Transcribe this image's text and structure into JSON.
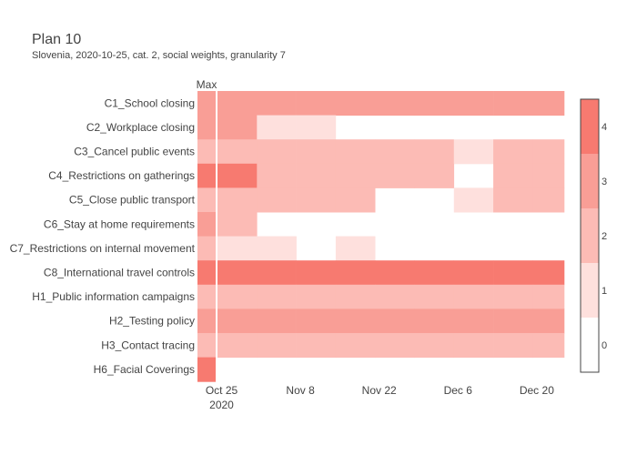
{
  "chart_data": {
    "type": "heatmap",
    "title": "Plan 10",
    "subtitle": "Slovenia, 2020-10-25, cat. 2, social weights, granularity 7",
    "max_column_label": "Max",
    "rows": [
      "C1_School closing",
      "C2_Workplace closing",
      "C3_Cancel public events",
      "C4_Restrictions on gatherings",
      "C5_Close public transport",
      "C6_Stay at home requirements",
      "C7_Restrictions on internal movement",
      "C8_International travel controls",
      "H1_Public information campaigns",
      "H2_Testing policy",
      "H3_Contact tracing",
      "H6_Facial Coverings"
    ],
    "max_values": [
      3,
      3,
      2,
      4,
      2,
      3,
      2,
      4,
      2,
      3,
      2,
      4
    ],
    "week_values": [
      [
        3,
        3,
        3,
        3,
        3,
        3,
        3,
        3,
        3,
        3
      ],
      [
        3,
        1,
        1,
        null,
        null,
        null,
        null,
        null,
        null,
        null
      ],
      [
        2,
        2,
        2,
        2,
        2,
        2,
        1,
        2,
        2,
        2
      ],
      [
        4,
        2,
        2,
        2,
        2,
        2,
        null,
        2,
        2,
        2
      ],
      [
        2,
        2,
        2,
        2,
        null,
        null,
        1,
        2,
        2,
        2
      ],
      [
        2,
        null,
        null,
        null,
        null,
        null,
        null,
        null,
        null,
        null
      ],
      [
        1,
        1,
        null,
        1,
        null,
        null,
        null,
        null,
        null,
        null
      ],
      [
        4,
        4,
        4,
        4,
        4,
        4,
        4,
        4,
        4,
        4
      ],
      [
        2,
        2,
        2,
        2,
        2,
        2,
        2,
        2,
        2,
        2
      ],
      [
        3,
        3,
        3,
        3,
        3,
        3,
        3,
        3,
        3,
        3
      ],
      [
        2,
        2,
        2,
        2,
        2,
        2,
        2,
        2,
        2,
        2
      ],
      [
        null,
        null,
        null,
        null,
        null,
        null,
        null,
        null,
        null,
        null
      ]
    ],
    "x_start_date": "2020-10-25",
    "x_tick_labels": [
      "Oct 25",
      "Nov 8",
      "Nov 22",
      "Dec 6",
      "Dec 20"
    ],
    "x_tick_sublabel": "2020",
    "colorscale": {
      "zmin": 0,
      "zmax": 4,
      "ticks": [
        0,
        1,
        2,
        3,
        4
      ],
      "colors": [
        "#ffffff",
        "#fee0dd",
        "#fcbbb5",
        "#f99e96",
        "#f77a70"
      ]
    }
  }
}
